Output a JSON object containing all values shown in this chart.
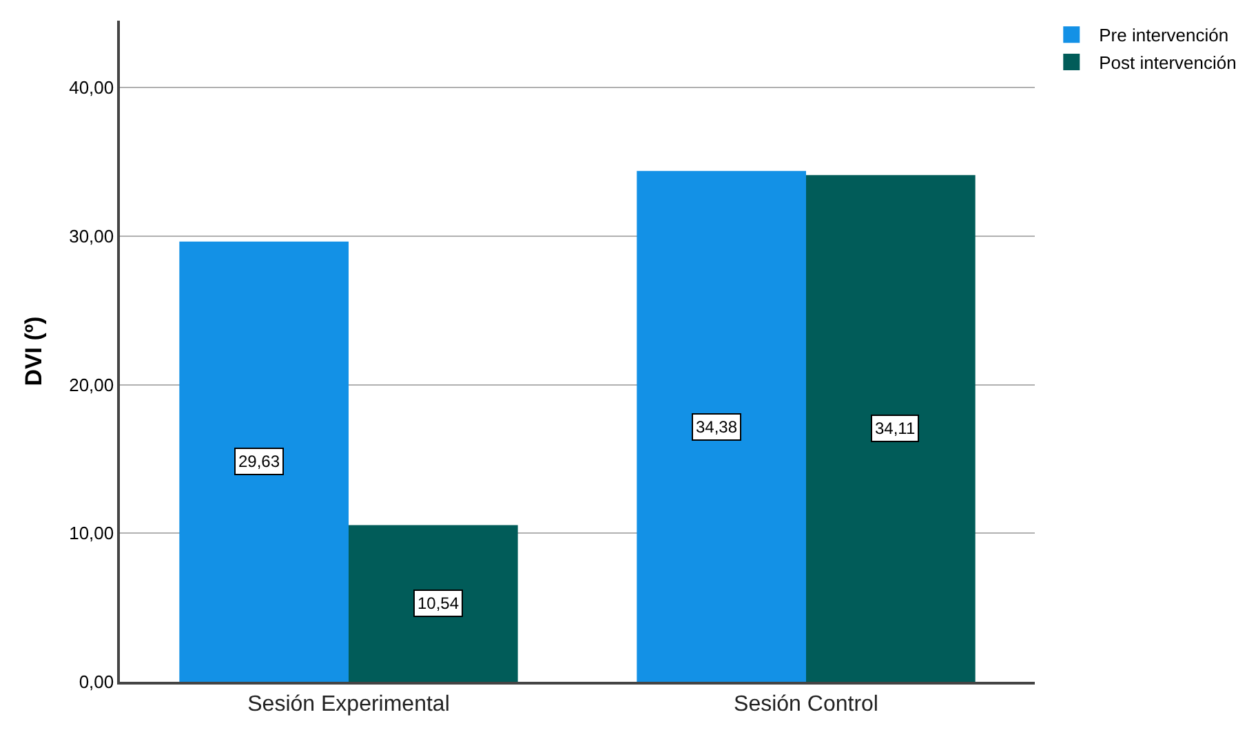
{
  "chart_data": {
    "type": "bar",
    "ylabel": "DVI (º)",
    "categories": [
      "Sesión Experimental",
      "Sesión Control"
    ],
    "series": [
      {
        "name": "Pre intervención",
        "color": "#1391e6",
        "values": [
          29.63,
          34.38
        ],
        "value_labels": [
          "29,63",
          "34,38"
        ]
      },
      {
        "name": "Post intervención",
        "color": "#015c59",
        "values": [
          10.54,
          34.11
        ],
        "value_labels": [
          "10,54",
          "34,11"
        ]
      }
    ],
    "ylim": [
      0,
      44.5
    ],
    "yticks": [
      {
        "value": 0,
        "label": "0,00"
      },
      {
        "value": 10,
        "label": "10,00"
      },
      {
        "value": 20,
        "label": "20,00"
      },
      {
        "value": 30,
        "label": "30,00"
      },
      {
        "value": 40,
        "label": "40,00"
      }
    ],
    "grid": "y",
    "legend": "top right"
  }
}
